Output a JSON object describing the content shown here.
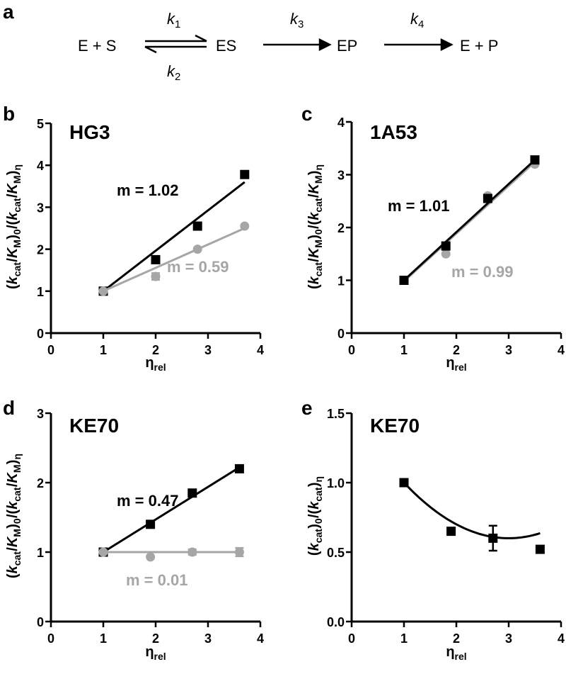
{
  "scheme": {
    "letter": "a",
    "E_S": "E + S",
    "k1": "k",
    "k1_sub": "1",
    "k2": "k",
    "k2_sub": "2",
    "ES": "ES",
    "k3": "k",
    "k3_sub": "3",
    "EP": "EP",
    "k4": "k",
    "k4_sub": "4",
    "E_P": "E + P"
  },
  "colors": {
    "black": "#000000",
    "gray": "#a6a6a6"
  },
  "chart_data": [
    {
      "panel": "b",
      "type": "scatter",
      "title": "HG3",
      "xlim": [
        0,
        4
      ],
      "ylim": [
        0,
        5
      ],
      "xticks": [
        "0",
        "1",
        "2",
        "3",
        "4"
      ],
      "yticks": [
        "0",
        "1",
        "2",
        "3",
        "4",
        "5"
      ],
      "xlabel": [
        [
          "η",
          ""
        ],
        [
          "rel",
          "sub"
        ]
      ],
      "ylabel": [
        [
          "(",
          ""
        ],
        [
          "k",
          "i"
        ],
        [
          "cat",
          "sub"
        ],
        [
          "/",
          ""
        ],
        [
          "K",
          "i"
        ],
        [
          "M",
          "sub"
        ],
        [
          ")",
          ""
        ],
        [
          "0",
          "sub"
        ],
        [
          "/(",
          ""
        ],
        [
          "k",
          "i"
        ],
        [
          "cat",
          "sub"
        ],
        [
          "/",
          ""
        ],
        [
          "K",
          "i"
        ],
        [
          "M",
          "sub"
        ],
        [
          ")",
          ""
        ],
        [
          "η",
          "sub"
        ]
      ],
      "series": [
        {
          "name": "black",
          "marker": "square",
          "x": [
            1,
            2,
            2.8,
            3.7
          ],
          "y": [
            1,
            1.75,
            2.55,
            3.78
          ],
          "fit": [
            [
              1,
              1
            ],
            [
              3.7,
              3.6
            ]
          ],
          "slope_label": "m = 1.02"
        },
        {
          "name": "gray",
          "marker": "circle",
          "x": [
            1,
            2,
            2.8,
            3.7
          ],
          "y": [
            1,
            1.35,
            2.0,
            2.55
          ],
          "err": [
            0,
            0.08,
            0,
            0
          ],
          "fit": [
            [
              1,
              1
            ],
            [
              3.7,
              2.5
            ]
          ],
          "slope_label": "m = 0.59"
        }
      ]
    },
    {
      "panel": "c",
      "type": "scatter",
      "title": "1A53",
      "xlim": [
        0,
        4
      ],
      "ylim": [
        0,
        4
      ],
      "xticks": [
        "0",
        "1",
        "2",
        "3",
        "4"
      ],
      "yticks": [
        "0",
        "1",
        "2",
        "3",
        "4"
      ],
      "xlabel": [
        [
          "η",
          ""
        ],
        [
          "rel",
          "sub"
        ]
      ],
      "ylabel": [
        [
          "(",
          ""
        ],
        [
          "k",
          "i"
        ],
        [
          "cat",
          "sub"
        ],
        [
          "/",
          ""
        ],
        [
          "K",
          "i"
        ],
        [
          "M",
          "sub"
        ],
        [
          ")",
          ""
        ],
        [
          "0",
          "sub"
        ],
        [
          "/(",
          ""
        ],
        [
          "k",
          "i"
        ],
        [
          "cat",
          "sub"
        ],
        [
          "/",
          ""
        ],
        [
          "K",
          "i"
        ],
        [
          "M",
          "sub"
        ],
        [
          ")",
          ""
        ],
        [
          "η",
          "sub"
        ]
      ],
      "series": [
        {
          "name": "gray",
          "marker": "circle",
          "x": [
            1,
            1.8,
            2.6,
            3.5
          ],
          "y": [
            1,
            1.5,
            2.6,
            3.2
          ],
          "fit": [
            [
              1,
              0.98
            ],
            [
              3.5,
              3.24
            ]
          ],
          "slope_label": "m = 0.99"
        },
        {
          "name": "black",
          "marker": "square",
          "x": [
            1,
            1.8,
            2.6,
            3.5
          ],
          "y": [
            1,
            1.65,
            2.55,
            3.28
          ],
          "fit": [
            [
              1,
              1
            ],
            [
              3.5,
              3.28
            ]
          ],
          "slope_label": "m = 1.01"
        }
      ]
    },
    {
      "panel": "d",
      "type": "scatter",
      "title": "KE70",
      "xlim": [
        0,
        4
      ],
      "ylim": [
        0,
        3
      ],
      "xticks": [
        "0",
        "1",
        "2",
        "3",
        "4"
      ],
      "yticks": [
        "0",
        "1",
        "2",
        "3"
      ],
      "xlabel": [
        [
          "η",
          ""
        ],
        [
          "rel",
          "sub"
        ]
      ],
      "ylabel": [
        [
          "(",
          ""
        ],
        [
          "k",
          "i"
        ],
        [
          "cat",
          "sub"
        ],
        [
          "/",
          ""
        ],
        [
          "K",
          "i"
        ],
        [
          "M",
          "sub"
        ],
        [
          ")",
          ""
        ],
        [
          "0",
          "sub"
        ],
        [
          "/(",
          ""
        ],
        [
          "k",
          "i"
        ],
        [
          "cat",
          "sub"
        ],
        [
          "/",
          ""
        ],
        [
          "K",
          "i"
        ],
        [
          "M",
          "sub"
        ],
        [
          ")",
          ""
        ],
        [
          "η",
          "sub"
        ]
      ],
      "series": [
        {
          "name": "black",
          "marker": "square",
          "x": [
            1,
            1.9,
            2.7,
            3.6
          ],
          "y": [
            1,
            1.4,
            1.85,
            2.2
          ],
          "err": [
            0,
            0,
            0.05,
            0
          ],
          "fit": [
            [
              1,
              1
            ],
            [
              3.6,
              2.22
            ]
          ],
          "slope_label": "m = 0.47"
        },
        {
          "name": "gray",
          "marker": "circle",
          "x": [
            1,
            1.9,
            2.7,
            3.6
          ],
          "y": [
            1,
            0.93,
            1.0,
            1.0
          ],
          "err": [
            0,
            0,
            0.04,
            0.06
          ],
          "fit": [
            [
              1,
              1
            ],
            [
              3.6,
              1.0
            ]
          ],
          "slope_label": "m = 0.01"
        }
      ]
    },
    {
      "panel": "e",
      "type": "scatter",
      "title": "KE70",
      "xlim": [
        0,
        4
      ],
      "ylim": [
        0,
        1.5
      ],
      "xticks": [
        "0",
        "1",
        "2",
        "3",
        "4"
      ],
      "yticks": [
        "0.0",
        "0.5",
        "1.0",
        "1.5"
      ],
      "xlabel": [
        [
          "η",
          ""
        ],
        [
          "rel",
          "sub"
        ]
      ],
      "ylabel": [
        [
          "(",
          ""
        ],
        [
          "k",
          "i"
        ],
        [
          "cat",
          "sub"
        ],
        [
          ")",
          ""
        ],
        [
          "0",
          "sub"
        ],
        [
          "/(",
          ""
        ],
        [
          "k",
          "i"
        ],
        [
          "cat",
          "sub"
        ],
        [
          ")",
          ""
        ],
        [
          "η",
          "sub"
        ]
      ],
      "series": [
        {
          "name": "black",
          "marker": "square",
          "x": [
            1,
            1.9,
            2.7,
            3.6
          ],
          "y": [
            1,
            0.65,
            0.6,
            0.52
          ],
          "err": [
            0,
            0,
            0.09,
            0
          ],
          "curve": [
            0.1,
            -0.6,
            1.5
          ],
          "slope_label": ""
        }
      ]
    }
  ]
}
